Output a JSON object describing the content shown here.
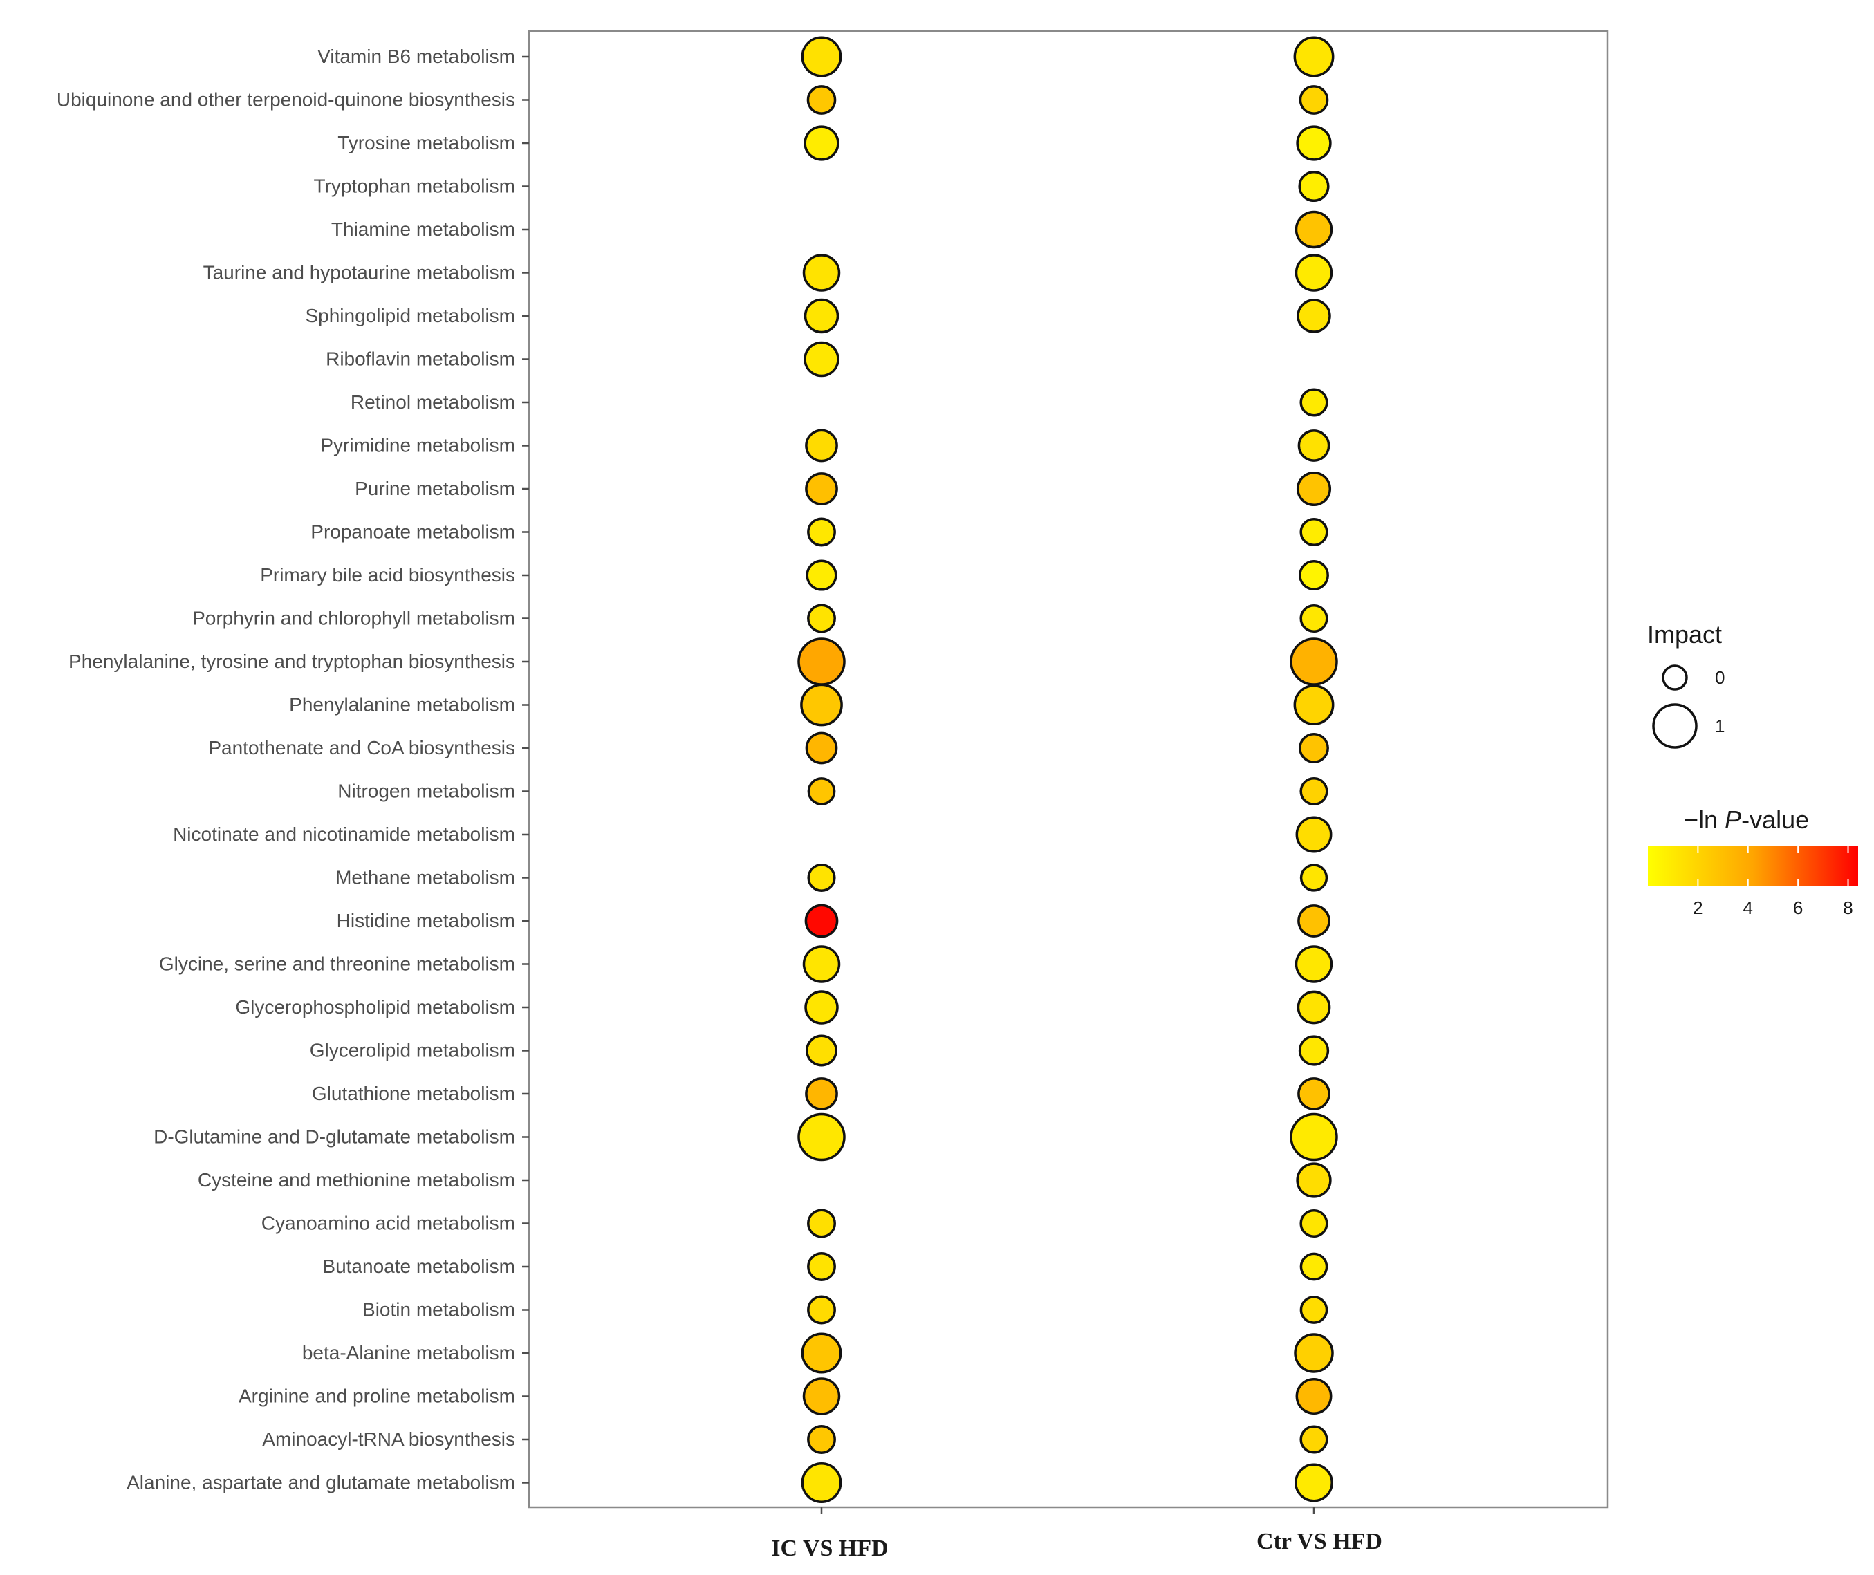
{
  "chart_data": {
    "type": "scatter",
    "title": "",
    "xlabel": "",
    "ylabel": "",
    "groups": [
      "IC VS HFD",
      "Ctr VS HFD"
    ],
    "pathways": [
      "Vitamin B6 metabolism",
      "Ubiquinone and other terpenoid-quinone biosynthesis",
      "Tyrosine metabolism",
      "Tryptophan metabolism",
      "Thiamine metabolism",
      "Taurine and hypotaurine metabolism",
      "Sphingolipid metabolism",
      "Riboflavin metabolism",
      "Retinol metabolism",
      "Pyrimidine metabolism",
      "Purine metabolism",
      "Propanoate metabolism",
      "Primary bile acid biosynthesis",
      "Porphyrin and chlorophyll metabolism",
      "Phenylalanine, tyrosine and tryptophan biosynthesis",
      "Phenylalanine metabolism",
      "Pantothenate and CoA biosynthesis",
      "Nitrogen metabolism",
      "Nicotinate and nicotinamide metabolism",
      "Methane metabolism",
      "Histidine metabolism",
      "Glycine, serine and threonine metabolism",
      "Glycerophospholipid metabolism",
      "Glycerolipid metabolism",
      "Glutathione metabolism",
      "D-Glutamine and D-glutamate metabolism",
      "Cysteine and methionine metabolism",
      "Cyanoamino acid metabolism",
      "Butanoate metabolism",
      "Biotin metabolism",
      "beta-Alanine metabolism",
      "Arginine and proline metabolism",
      "Aminoacyl-tRNA biosynthesis",
      "Alanine, aspartate and glutamate metabolism"
    ],
    "points": [
      {
        "group": "IC VS HFD",
        "pathway": "Vitamin B6 metabolism",
        "impact": 0.6,
        "neg_ln_p": 1.4
      },
      {
        "group": "IC VS HFD",
        "pathway": "Ubiquinone and other terpenoid-quinone biosynthesis",
        "impact": 0.12,
        "neg_ln_p": 2.6
      },
      {
        "group": "IC VS HFD",
        "pathway": "Tyrosine metabolism",
        "impact": 0.35,
        "neg_ln_p": 0.9
      },
      {
        "group": "IC VS HFD",
        "pathway": "Taurine and hypotaurine metabolism",
        "impact": 0.45,
        "neg_ln_p": 1.3
      },
      {
        "group": "IC VS HFD",
        "pathway": "Sphingolipid metabolism",
        "impact": 0.33,
        "neg_ln_p": 1.2
      },
      {
        "group": "IC VS HFD",
        "pathway": "Riboflavin metabolism",
        "impact": 0.36,
        "neg_ln_p": 1.1
      },
      {
        "group": "IC VS HFD",
        "pathway": "Pyrimidine metabolism",
        "impact": 0.25,
        "neg_ln_p": 1.7
      },
      {
        "group": "IC VS HFD",
        "pathway": "Purine metabolism",
        "impact": 0.25,
        "neg_ln_p": 3.0
      },
      {
        "group": "IC VS HFD",
        "pathway": "Propanoate metabolism",
        "impact": 0.1,
        "neg_ln_p": 1.1
      },
      {
        "group": "IC VS HFD",
        "pathway": "Primary bile acid biosynthesis",
        "impact": 0.18,
        "neg_ln_p": 0.9
      },
      {
        "group": "IC VS HFD",
        "pathway": "Porphyrin and chlorophyll metabolism",
        "impact": 0.1,
        "neg_ln_p": 1.3
      },
      {
        "group": "IC VS HFD",
        "pathway": "Phenylalanine, tyrosine and tryptophan biosynthesis",
        "impact": 1.0,
        "neg_ln_p": 4.1
      },
      {
        "group": "IC VS HFD",
        "pathway": "Phenylalanine metabolism",
        "impact": 0.7,
        "neg_ln_p": 2.6
      },
      {
        "group": "IC VS HFD",
        "pathway": "Pantothenate and CoA biosynthesis",
        "impact": 0.22,
        "neg_ln_p": 3.4
      },
      {
        "group": "IC VS HFD",
        "pathway": "Nitrogen metabolism",
        "impact": 0.07,
        "neg_ln_p": 2.7
      },
      {
        "group": "IC VS HFD",
        "pathway": "Methane metabolism",
        "impact": 0.08,
        "neg_ln_p": 1.3
      },
      {
        "group": "IC VS HFD",
        "pathway": "Histidine metabolism",
        "impact": 0.28,
        "neg_ln_p": 8.2
      },
      {
        "group": "IC VS HFD",
        "pathway": "Glycine, serine and threonine metabolism",
        "impact": 0.45,
        "neg_ln_p": 1.2
      },
      {
        "group": "IC VS HFD",
        "pathway": "Glycerophospholipid metabolism",
        "impact": 0.3,
        "neg_ln_p": 1.2
      },
      {
        "group": "IC VS HFD",
        "pathway": "Glycerolipid metabolism",
        "impact": 0.2,
        "neg_ln_p": 1.5
      },
      {
        "group": "IC VS HFD",
        "pathway": "Glutathione metabolism",
        "impact": 0.25,
        "neg_ln_p": 3.4
      },
      {
        "group": "IC VS HFD",
        "pathway": "D-Glutamine and D-glutamate metabolism",
        "impact": 1.0,
        "neg_ln_p": 1.1
      },
      {
        "group": "IC VS HFD",
        "pathway": "Cyanoamino acid metabolism",
        "impact": 0.1,
        "neg_ln_p": 1.5
      },
      {
        "group": "IC VS HFD",
        "pathway": "Butanoate metabolism",
        "impact": 0.1,
        "neg_ln_p": 1.3
      },
      {
        "group": "IC VS HFD",
        "pathway": "Biotin metabolism",
        "impact": 0.1,
        "neg_ln_p": 1.7
      },
      {
        "group": "IC VS HFD",
        "pathway": "beta-Alanine metabolism",
        "impact": 0.6,
        "neg_ln_p": 2.7
      },
      {
        "group": "IC VS HFD",
        "pathway": "Arginine and proline metabolism",
        "impact": 0.45,
        "neg_ln_p": 3.1
      },
      {
        "group": "IC VS HFD",
        "pathway": "Aminoacyl-tRNA biosynthesis",
        "impact": 0.1,
        "neg_ln_p": 2.6
      },
      {
        "group": "IC VS HFD",
        "pathway": "Alanine, aspartate and glutamate metabolism",
        "impact": 0.6,
        "neg_ln_p": 1.2
      },
      {
        "group": "Ctr VS HFD",
        "pathway": "Vitamin B6 metabolism",
        "impact": 0.6,
        "neg_ln_p": 1.2
      },
      {
        "group": "Ctr VS HFD",
        "pathway": "Ubiquinone and other terpenoid-quinone biosynthesis",
        "impact": 0.12,
        "neg_ln_p": 2.0
      },
      {
        "group": "Ctr VS HFD",
        "pathway": "Tyrosine metabolism",
        "impact": 0.35,
        "neg_ln_p": 0.6
      },
      {
        "group": "Ctr VS HFD",
        "pathway": "Tryptophan metabolism",
        "impact": 0.18,
        "neg_ln_p": 0.8
      },
      {
        "group": "Ctr VS HFD",
        "pathway": "Thiamine metabolism",
        "impact": 0.45,
        "neg_ln_p": 2.8
      },
      {
        "group": "Ctr VS HFD",
        "pathway": "Taurine and hypotaurine metabolism",
        "impact": 0.45,
        "neg_ln_p": 1.0
      },
      {
        "group": "Ctr VS HFD",
        "pathway": "Sphingolipid metabolism",
        "impact": 0.3,
        "neg_ln_p": 1.3
      },
      {
        "group": "Ctr VS HFD",
        "pathway": "Retinol metabolism",
        "impact": 0.08,
        "neg_ln_p": 1.0
      },
      {
        "group": "Ctr VS HFD",
        "pathway": "Pyrimidine metabolism",
        "impact": 0.22,
        "neg_ln_p": 1.4
      },
      {
        "group": "Ctr VS HFD",
        "pathway": "Purine metabolism",
        "impact": 0.32,
        "neg_ln_p": 2.8
      },
      {
        "group": "Ctr VS HFD",
        "pathway": "Propanoate metabolism",
        "impact": 0.08,
        "neg_ln_p": 0.9
      },
      {
        "group": "Ctr VS HFD",
        "pathway": "Primary bile acid biosynthesis",
        "impact": 0.15,
        "neg_ln_p": 0.5
      },
      {
        "group": "Ctr VS HFD",
        "pathway": "Porphyrin and chlorophyll metabolism",
        "impact": 0.08,
        "neg_ln_p": 1.1
      },
      {
        "group": "Ctr VS HFD",
        "pathway": "Phenylalanine, tyrosine and tryptophan biosynthesis",
        "impact": 1.0,
        "neg_ln_p": 3.6
      },
      {
        "group": "Ctr VS HFD",
        "pathway": "Phenylalanine metabolism",
        "impact": 0.6,
        "neg_ln_p": 2.0
      },
      {
        "group": "Ctr VS HFD",
        "pathway": "Pantothenate and CoA biosynthesis",
        "impact": 0.15,
        "neg_ln_p": 2.8
      },
      {
        "group": "Ctr VS HFD",
        "pathway": "Nitrogen metabolism",
        "impact": 0.08,
        "neg_ln_p": 2.1
      },
      {
        "group": "Ctr VS HFD",
        "pathway": "Nicotinate and nicotinamide metabolism",
        "impact": 0.4,
        "neg_ln_p": 1.6
      },
      {
        "group": "Ctr VS HFD",
        "pathway": "Methane metabolism",
        "impact": 0.06,
        "neg_ln_p": 1.2
      },
      {
        "group": "Ctr VS HFD",
        "pathway": "Histidine metabolism",
        "impact": 0.25,
        "neg_ln_p": 2.9
      },
      {
        "group": "Ctr VS HFD",
        "pathway": "Glycine, serine and threonine metabolism",
        "impact": 0.45,
        "neg_ln_p": 1.1
      },
      {
        "group": "Ctr VS HFD",
        "pathway": "Glycerophospholipid metabolism",
        "impact": 0.28,
        "neg_ln_p": 1.3
      },
      {
        "group": "Ctr VS HFD",
        "pathway": "Glycerolipid metabolism",
        "impact": 0.16,
        "neg_ln_p": 1.1
      },
      {
        "group": "Ctr VS HFD",
        "pathway": "Glutathione metabolism",
        "impact": 0.25,
        "neg_ln_p": 2.9
      },
      {
        "group": "Ctr VS HFD",
        "pathway": "D-Glutamine and D-glutamate metabolism",
        "impact": 1.0,
        "neg_ln_p": 1.0
      },
      {
        "group": "Ctr VS HFD",
        "pathway": "Cysteine and methionine metabolism",
        "impact": 0.35,
        "neg_ln_p": 1.6
      },
      {
        "group": "Ctr VS HFD",
        "pathway": "Cyanoamino acid metabolism",
        "impact": 0.08,
        "neg_ln_p": 1.2
      },
      {
        "group": "Ctr VS HFD",
        "pathway": "Butanoate metabolism",
        "impact": 0.07,
        "neg_ln_p": 1.0
      },
      {
        "group": "Ctr VS HFD",
        "pathway": "Biotin metabolism",
        "impact": 0.07,
        "neg_ln_p": 1.6
      },
      {
        "group": "Ctr VS HFD",
        "pathway": "beta-Alanine metabolism",
        "impact": 0.55,
        "neg_ln_p": 2.2
      },
      {
        "group": "Ctr VS HFD",
        "pathway": "Arginine and proline metabolism",
        "impact": 0.4,
        "neg_ln_p": 3.3
      },
      {
        "group": "Ctr VS HFD",
        "pathway": "Aminoacyl-tRNA biosynthesis",
        "impact": 0.08,
        "neg_ln_p": 1.9
      },
      {
        "group": "Ctr VS HFD",
        "pathway": "Alanine, aspartate and glutamate metabolism",
        "impact": 0.5,
        "neg_ln_p": 1.0
      }
    ],
    "legend": {
      "size_title": "Impact",
      "size_breaks": [
        0,
        1
      ],
      "size_labels": [
        "0",
        "1"
      ],
      "color_title_prefix": "−ln ",
      "color_title_italic": "P",
      "color_title_suffix": "-value",
      "color_range": [
        0,
        8.4
      ],
      "color_breaks": [
        2,
        4,
        6,
        8
      ],
      "color_break_labels": [
        "2",
        "4",
        "6",
        "8"
      ],
      "colors": [
        "#ffff00",
        "#ffa500",
        "#ff0000"
      ],
      "placement": "right"
    }
  }
}
